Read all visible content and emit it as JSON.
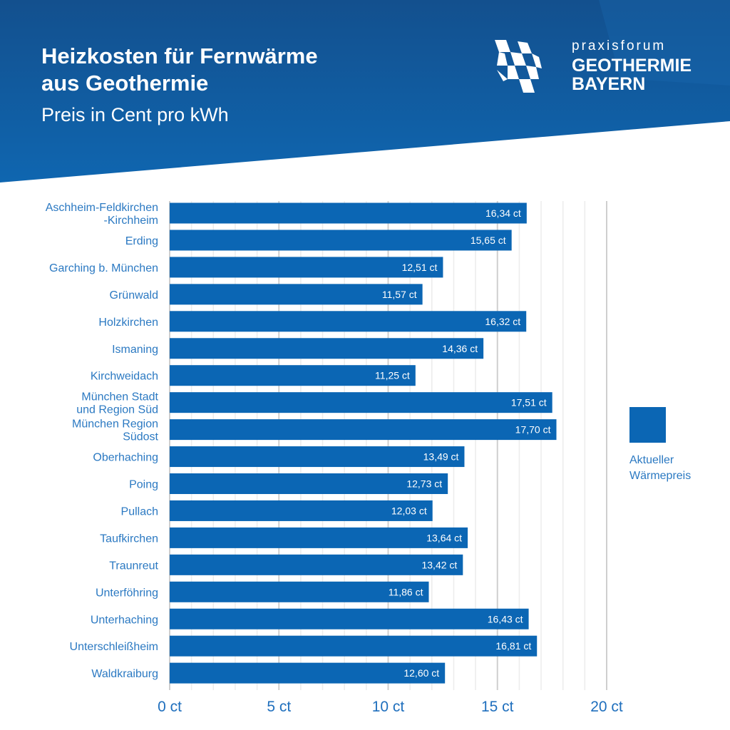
{
  "header": {
    "title_line1": "Heizkosten für Fernwärme",
    "title_line2": "aus Geothermie",
    "subtitle": "Preis in Cent pro kWh"
  },
  "logo": {
    "line1": "praxisforum",
    "line2": "GEOTHERMIE",
    "line3": "BAYERN"
  },
  "colors": {
    "header": "#0f5fa8",
    "bar": "#0b66b4",
    "label": "#2b79c2"
  },
  "legend": {
    "line1": "Aktueller",
    "line2": "Wärmepreis"
  },
  "chart_data": {
    "type": "bar",
    "orientation": "horizontal",
    "title": "Heizkosten für Fernwärme aus Geothermie",
    "subtitle": "Preis in Cent pro kWh",
    "categories": [
      [
        "Aschheim-Feldkirchen",
        "-Kirchheim"
      ],
      [
        "Erding"
      ],
      [
        "Garching b. München"
      ],
      [
        "Grünwald"
      ],
      [
        "Holzkirchen"
      ],
      [
        "Ismaning"
      ],
      [
        "Kirchweidach"
      ],
      [
        "München Stadt",
        "und Region Süd"
      ],
      [
        "München Region",
        "Südost"
      ],
      [
        "Oberhaching"
      ],
      [
        "Poing"
      ],
      [
        "Pullach"
      ],
      [
        "Taufkirchen"
      ],
      [
        "Traunreut"
      ],
      [
        "Unterföhring"
      ],
      [
        "Unterhaching"
      ],
      [
        "Unterschleißheim"
      ],
      [
        "Waldkraiburg"
      ]
    ],
    "values": [
      16.34,
      15.65,
      12.51,
      11.57,
      16.32,
      14.36,
      11.25,
      17.51,
      17.7,
      13.49,
      12.73,
      12.03,
      13.64,
      13.42,
      11.86,
      16.43,
      16.81,
      12.6
    ],
    "value_labels": [
      "16,34 ct",
      "15,65 ct",
      "12,51 ct",
      "11,57 ct",
      "16,32 ct",
      "14,36 ct",
      "11,25 ct",
      "17,51 ct",
      "17,70 ct",
      "13,49 ct",
      "12,73 ct",
      "12,03 ct",
      "13,64 ct",
      "13,42 ct",
      "11,86 ct",
      "16,43 ct",
      "16,81 ct",
      "12,60 ct"
    ],
    "series_name": "Aktueller Wärmepreis",
    "xlim": [
      0,
      20
    ],
    "xticks": [
      0,
      5,
      10,
      15,
      20
    ],
    "xtick_labels": [
      "0 ct",
      "5 ct",
      "10 ct",
      "15 ct",
      "20 ct"
    ],
    "minor_grid_step": 1,
    "grid": true,
    "legend_position": "right"
  }
}
